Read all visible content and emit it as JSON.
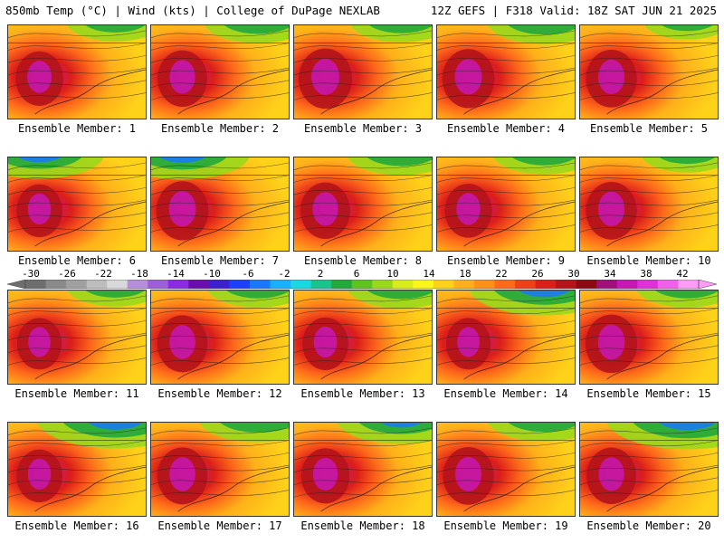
{
  "header": {
    "left": "850mb Temp (°C) | Wind (kts) | College of DuPage NEXLAB",
    "right": "12Z GEFS | F318 Valid: 18Z SAT JUN 21 2025"
  },
  "panel_label_prefix": "Ensemble Member: ",
  "members": [
    {
      "id": "1",
      "heat": 0.62,
      "cold": 0.25,
      "coldSide": "right"
    },
    {
      "id": "2",
      "heat": 0.7,
      "cold": 0.35,
      "coldSide": "right"
    },
    {
      "id": "3",
      "heat": 0.85,
      "cold": 0.3,
      "coldSide": "right"
    },
    {
      "id": "4",
      "heat": 0.8,
      "cold": 0.4,
      "coldSide": "right"
    },
    {
      "id": "5",
      "heat": 0.75,
      "cold": 0.15,
      "coldSide": "right"
    },
    {
      "id": "6",
      "heat": 0.55,
      "cold": 0.55,
      "coldSide": "left"
    },
    {
      "id": "7",
      "heat": 0.8,
      "cold": 0.6,
      "coldSide": "left"
    },
    {
      "id": "8",
      "heat": 0.7,
      "cold": 0.35,
      "coldSide": "right"
    },
    {
      "id": "9",
      "heat": 0.6,
      "cold": 0.3,
      "coldSide": "right"
    },
    {
      "id": "10",
      "heat": 0.75,
      "cold": 0.2,
      "coldSide": "right"
    },
    {
      "id": "11",
      "heat": 0.5,
      "cold": 0.25,
      "coldSide": "right"
    },
    {
      "id": "12",
      "heat": 0.72,
      "cold": 0.3,
      "coldSide": "right"
    },
    {
      "id": "13",
      "heat": 0.55,
      "cold": 0.35,
      "coldSide": "right"
    },
    {
      "id": "14",
      "heat": 0.5,
      "cold": 0.75,
      "coldSide": "right"
    },
    {
      "id": "15",
      "heat": 0.78,
      "cold": 0.3,
      "coldSide": "right"
    },
    {
      "id": "16",
      "heat": 0.55,
      "cold": 0.8,
      "coldSide": "right"
    },
    {
      "id": "17",
      "heat": 0.72,
      "cold": 0.45,
      "coldSide": "right"
    },
    {
      "id": "18",
      "heat": 0.65,
      "cold": 0.55,
      "coldSide": "right"
    },
    {
      "id": "19",
      "heat": 0.75,
      "cold": 0.4,
      "coldSide": "right"
    },
    {
      "id": "20",
      "heat": 0.7,
      "cold": 0.85,
      "coldSide": "right"
    }
  ],
  "colorbar": {
    "labels": [
      "-30",
      "-26",
      "-22",
      "-18",
      "-14",
      "-10",
      "-6",
      "-2",
      "2",
      "6",
      "10",
      "14",
      "18",
      "22",
      "26",
      "30",
      "34",
      "38",
      "42"
    ],
    "colors": [
      "#6e6e6e",
      "#8a8a8a",
      "#a0a0a0",
      "#bdbdbd",
      "#d9d9d9",
      "#b58fdc",
      "#9c5fd8",
      "#8a2be2",
      "#6a0dad",
      "#3c1fd0",
      "#1f3fff",
      "#1a78ff",
      "#19b0ff",
      "#19d9e0",
      "#19c48c",
      "#23a83c",
      "#5ec21f",
      "#9ad81c",
      "#d8ec1a",
      "#fbf71a",
      "#ffd21a",
      "#ffb01a",
      "#ff901a",
      "#ff6a1a",
      "#f0401a",
      "#dc1e1a",
      "#b4141a",
      "#8c0a14",
      "#a0107a",
      "#c818b4",
      "#e030d8",
      "#f060e8",
      "#ff9cf6"
    ]
  }
}
